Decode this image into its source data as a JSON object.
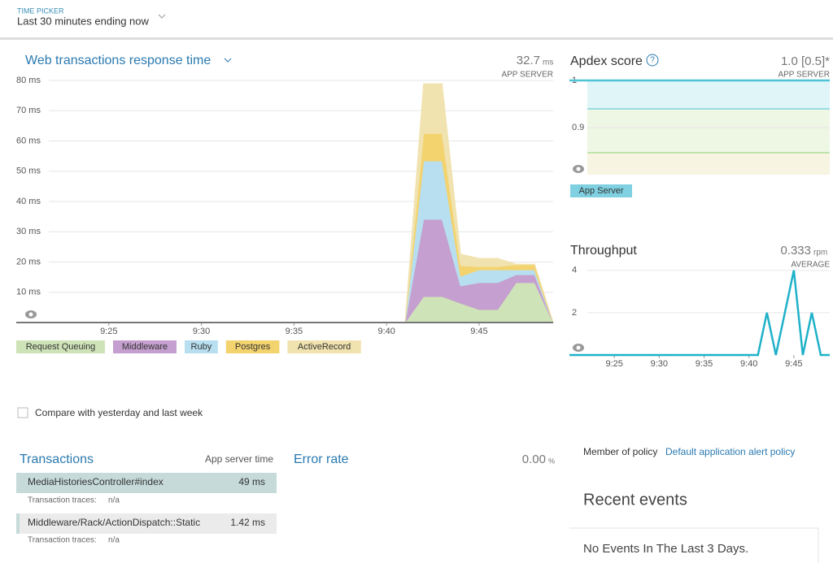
{
  "header": {
    "label": "TIME PICKER",
    "value": "Last 30 minutes ending now"
  },
  "chart_data": [
    {
      "type": "stacked-area",
      "title": "Web transactions response time",
      "summary": "32.7",
      "summary_unit": "ms",
      "summary_caption": "APP SERVER",
      "x": [
        "9:41",
        "9:42",
        "9:43",
        "9:44",
        "9:45",
        "9:46",
        "9:47",
        "9:48",
        "9:49"
      ],
      "xlim": [
        "9:20",
        "9:49"
      ],
      "xticks": [
        "9:25",
        "9:30",
        "9:35",
        "9:40",
        "9:45"
      ],
      "ylim": [
        0,
        80
      ],
      "yticks": [
        {
          "value": 80,
          "label": "80 ms"
        },
        {
          "value": 70,
          "label": "70 ms"
        },
        {
          "value": 60,
          "label": "60 ms"
        },
        {
          "value": 50,
          "label": "50 ms"
        },
        {
          "value": 40,
          "label": "40 ms"
        },
        {
          "value": 30,
          "label": "30 ms"
        },
        {
          "value": 20,
          "label": "20 ms"
        },
        {
          "value": 10,
          "label": "10 ms"
        }
      ],
      "grid": true,
      "series": [
        {
          "name": "Request Queuing",
          "color": "#cfe3b8",
          "values": [
            0,
            8.6,
            8.6,
            6.4,
            4.3,
            4.3,
            13.2,
            13.2,
            0
          ]
        },
        {
          "name": "Middleware",
          "color": "#c59fcf",
          "values": [
            0,
            25.5,
            25.5,
            5.7,
            8.9,
            8.9,
            2.6,
            2.6,
            0
          ]
        },
        {
          "name": "Ruby",
          "color": "#b7dff0",
          "values": [
            0,
            19.3,
            19.3,
            3.2,
            4.2,
            4.2,
            1.6,
            1.6,
            0
          ]
        },
        {
          "name": "Postgres",
          "color": "#f3d36e",
          "values": [
            0,
            9.1,
            9.1,
            3.5,
            1.1,
            1.1,
            1.7,
            1.7,
            0
          ]
        },
        {
          "name": "ActiveRecord",
          "color": "#f1e3b0",
          "values": [
            0,
            16.4,
            16.4,
            3.8,
            2.7,
            2.7,
            0.2,
            0.2,
            0
          ]
        }
      ]
    },
    {
      "type": "line",
      "title": "Apdex score",
      "summary": "1.0 [0.5]*",
      "summary_caption": "APP SERVER",
      "x": [
        "9:20",
        "9:49"
      ],
      "xlim": [
        "9:20",
        "9:49"
      ],
      "ylim": [
        0.8,
        1
      ],
      "yticks": [
        1,
        0.9
      ],
      "series": [
        {
          "name": "App Server",
          "color": "#4ec3d6",
          "values": [
            1,
            1
          ]
        }
      ]
    },
    {
      "type": "line",
      "title": "Throughput",
      "summary": "0.333",
      "summary_unit": "rpm",
      "summary_caption": "AVERAGE",
      "x": [
        "9:20",
        "9:40",
        "9:41",
        "9:42",
        "9:43",
        "9:44",
        "9:45",
        "9:46",
        "9:47",
        "9:48",
        "9:49"
      ],
      "xlim": [
        "9:20",
        "9:49"
      ],
      "xticks": [
        "9:25",
        "9:30",
        "9:35",
        "9:40",
        "9:45"
      ],
      "ylim": [
        0,
        4.3
      ],
      "yticks": [
        4,
        2
      ],
      "series": [
        {
          "color": "#1fb1c9",
          "values": [
            0,
            0,
            0,
            2,
            0,
            2,
            4,
            0,
            2,
            0,
            0
          ]
        }
      ]
    }
  ],
  "compare": "Compare with yesterday and last week",
  "transactions": {
    "title": "Transactions",
    "column": "App server time",
    "traces_label": "Transaction traces:",
    "rows": [
      {
        "name": "MediaHistoriesController#index",
        "time": "49 ms",
        "traces": "n/a"
      },
      {
        "name": "Middleware/Rack/ActionDispatch::Static",
        "time": "1.42 ms",
        "traces": "n/a"
      }
    ]
  },
  "error_rate": {
    "title": "Error rate",
    "value": "0.00",
    "unit": "%"
  },
  "policy": {
    "label": "Member of policy",
    "link": "Default application alert policy"
  },
  "recent_events": {
    "title": "Recent events",
    "message": "No Events In The Last 3 Days."
  }
}
